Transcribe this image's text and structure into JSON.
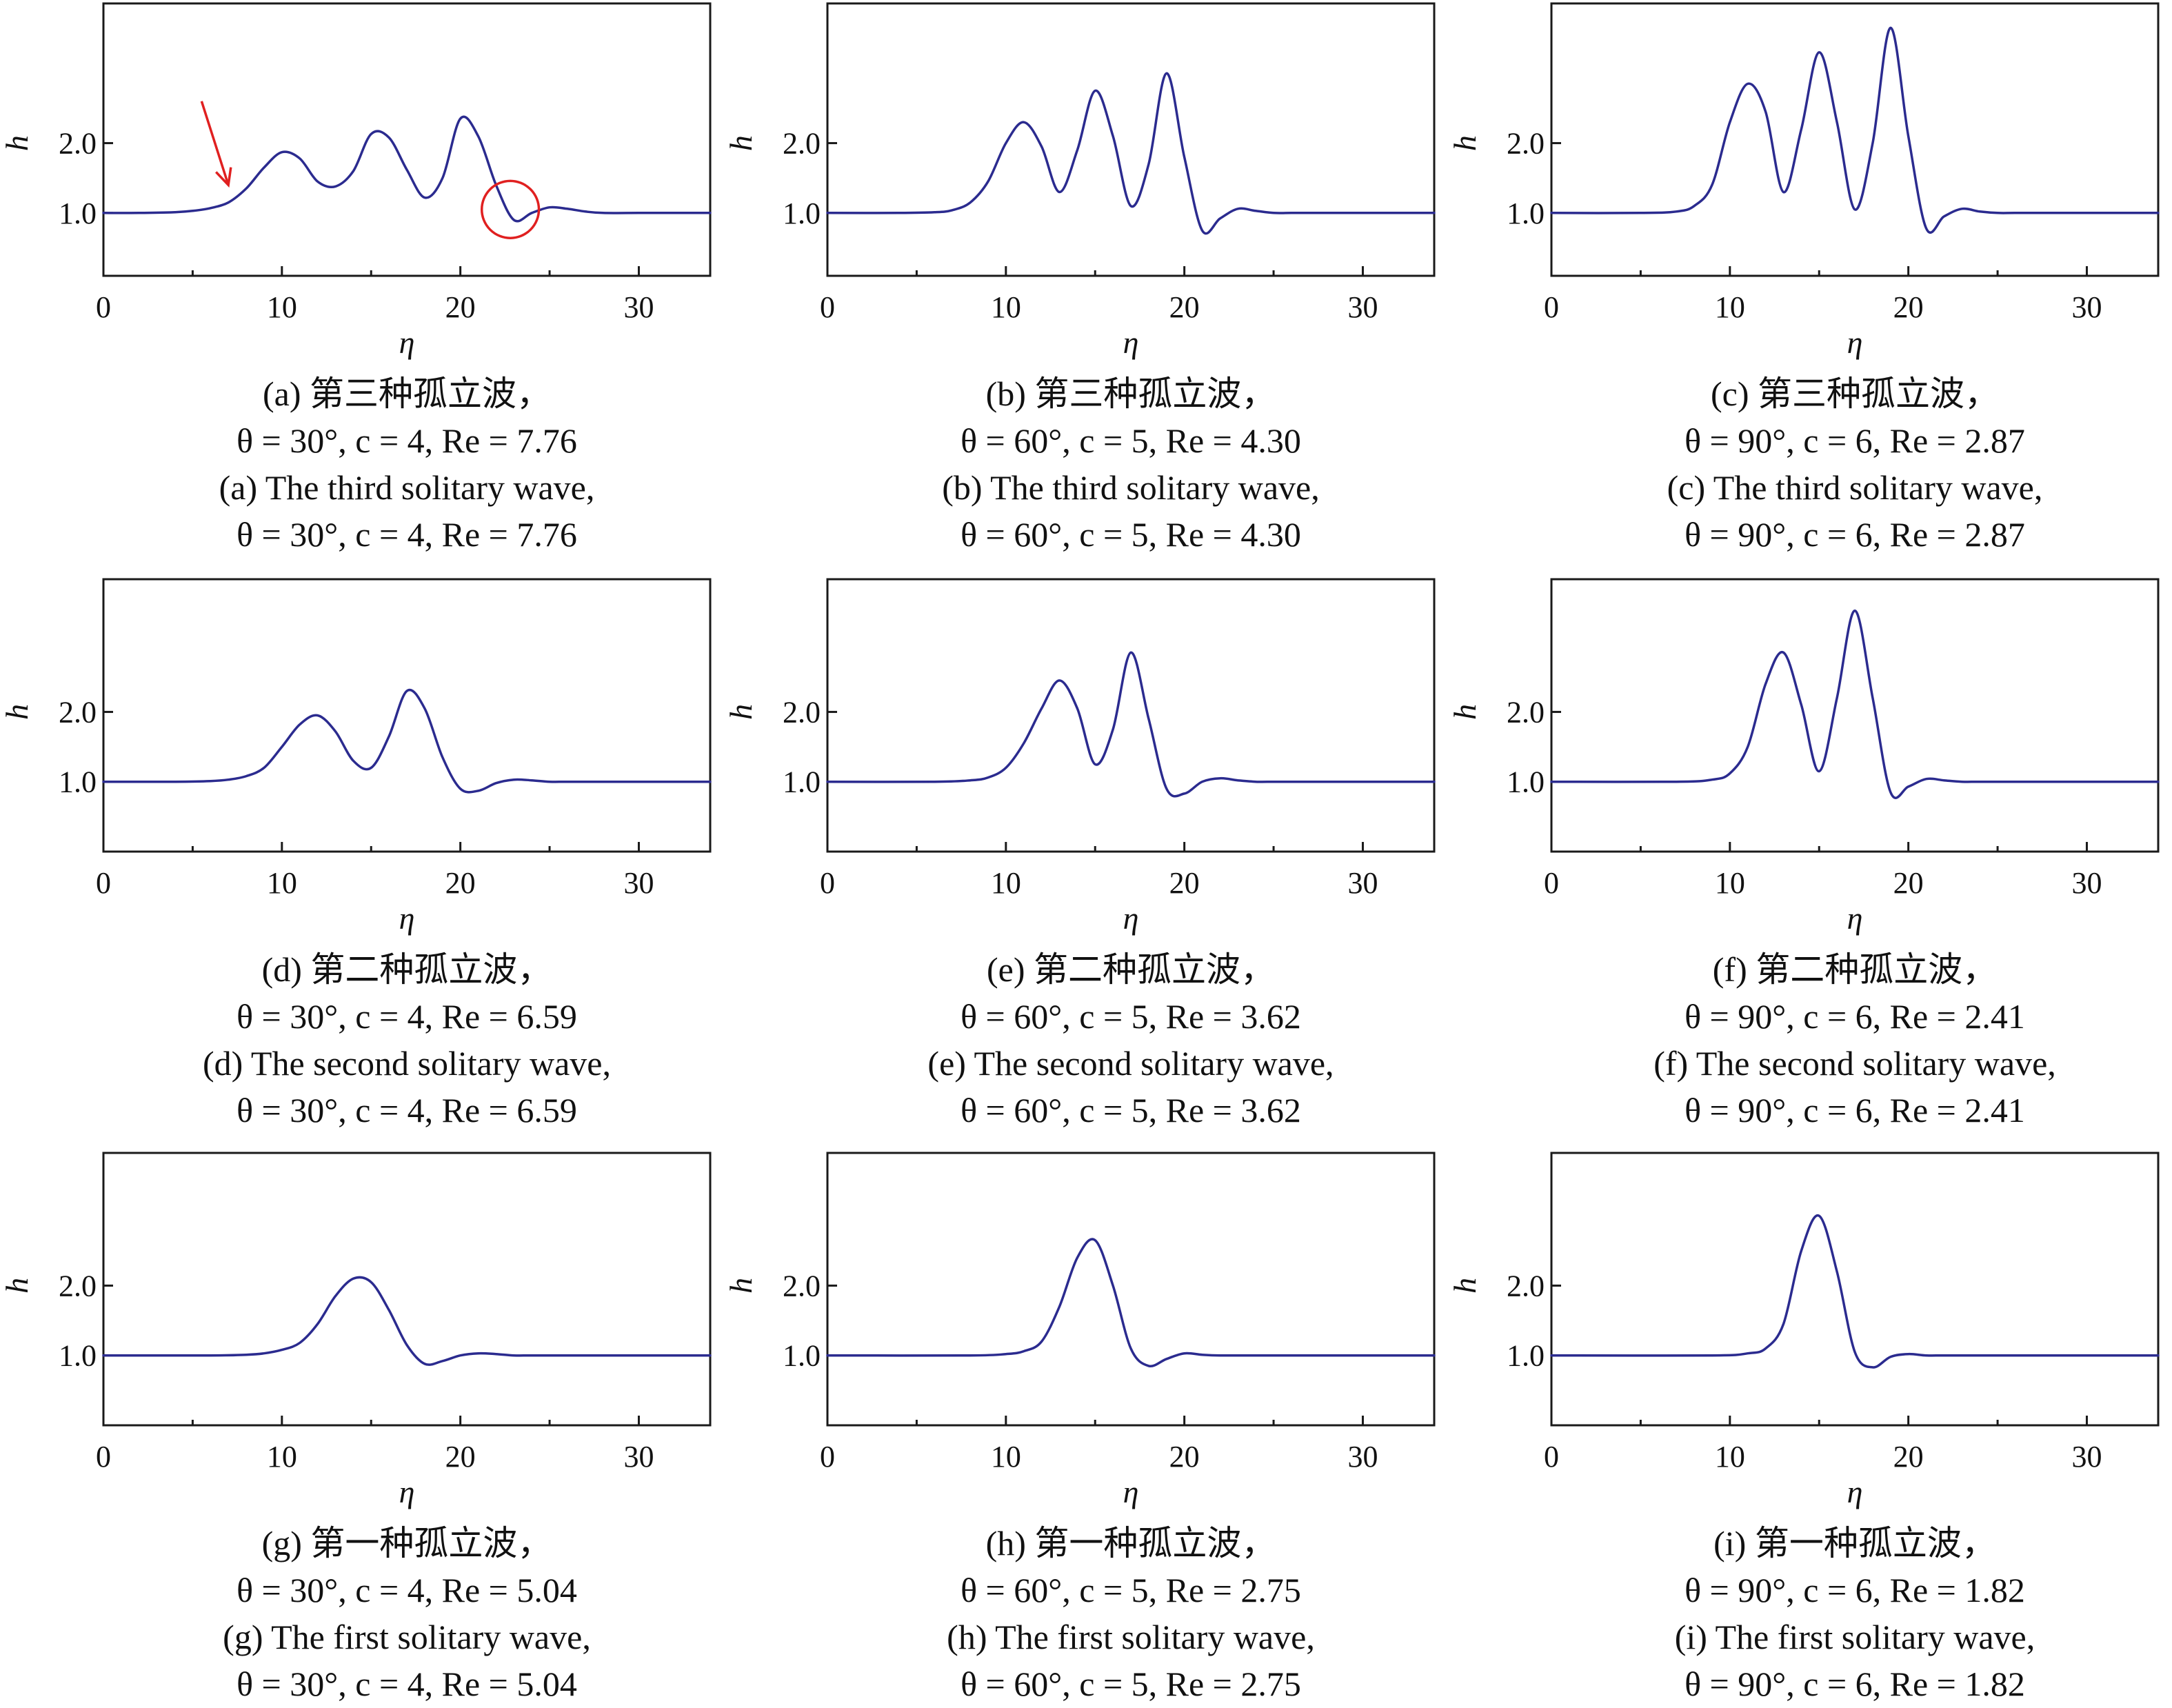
{
  "colors": {
    "series": "#2b2b8f",
    "annotation": "#e02020",
    "axis": "#1a1a1a",
    "text": "#111111"
  },
  "chart_data": [
    {
      "id": "a",
      "type": "line",
      "xlabel": "η",
      "ylabel": "h",
      "xlim": [
        0,
        34
      ],
      "ylim": [
        0.1,
        4.0
      ],
      "xticks": [
        "0",
        "10",
        "20",
        "30"
      ],
      "yticks": [
        "1.0",
        "2.0"
      ],
      "caption_zh": "(a) 第三种孤立波，",
      "caption_params_1": "θ = 30°, c = 4, Re = 7.76",
      "caption_en": "(a) The third solitary wave,",
      "caption_params_2": "θ = 30°, c = 4, Re = 7.76",
      "annotations": [
        {
          "type": "arrow",
          "from": [
            5.5,
            2.6
          ],
          "to": [
            7.0,
            1.4
          ]
        },
        {
          "type": "circle",
          "center": [
            22.8,
            1.05
          ],
          "radius": 1.6
        }
      ],
      "series": [
        {
          "x": [
            0,
            2,
            4,
            5,
            6,
            7,
            8,
            9,
            10,
            11,
            12,
            13,
            14,
            15,
            16,
            17,
            18,
            19,
            20,
            21,
            22,
            23,
            24,
            25,
            26,
            27,
            28,
            30,
            32,
            34
          ],
          "y": [
            1.0,
            1.0,
            1.01,
            1.03,
            1.07,
            1.15,
            1.35,
            1.65,
            1.87,
            1.78,
            1.45,
            1.38,
            1.6,
            2.13,
            2.08,
            1.62,
            1.22,
            1.5,
            2.35,
            2.1,
            1.4,
            0.9,
            1.0,
            1.08,
            1.06,
            1.02,
            1.0,
            1.0,
            1.0,
            1.0
          ]
        }
      ]
    },
    {
      "id": "b",
      "type": "line",
      "xlabel": "η",
      "ylabel": "h",
      "xlim": [
        0,
        34
      ],
      "ylim": [
        0.1,
        4.0
      ],
      "xticks": [
        "0",
        "10",
        "20",
        "30"
      ],
      "yticks": [
        "1.0",
        "2.0"
      ],
      "caption_zh": "(b) 第三种孤立波，",
      "caption_params_1": "θ = 60°, c = 5, Re = 4.30",
      "caption_en": "(b) The third solitary wave,",
      "caption_params_2": "θ = 60°, c = 5, Re = 4.30",
      "annotations": [],
      "series": [
        {
          "x": [
            0,
            4,
            6,
            7,
            8,
            9,
            10,
            11,
            12,
            13,
            14,
            15,
            16,
            17,
            18,
            19,
            20,
            21,
            22,
            23,
            24,
            25,
            26,
            28,
            30,
            34
          ],
          "y": [
            1.0,
            1.0,
            1.01,
            1.04,
            1.15,
            1.45,
            2.0,
            2.3,
            1.95,
            1.3,
            1.9,
            2.75,
            2.1,
            1.1,
            1.7,
            3.0,
            1.8,
            0.75,
            0.92,
            1.06,
            1.03,
            1.0,
            1.0,
            1.0,
            1.0,
            1.0
          ]
        }
      ]
    },
    {
      "id": "c",
      "type": "line",
      "xlabel": "η",
      "ylabel": "h",
      "xlim": [
        0,
        34
      ],
      "ylim": [
        0.1,
        4.0
      ],
      "xticks": [
        "0",
        "10",
        "20",
        "30"
      ],
      "yticks": [
        "1.0",
        "2.0"
      ],
      "caption_zh": "(c) 第三种孤立波，",
      "caption_params_1": "θ = 90°, c = 6, Re = 2.87",
      "caption_en": "(c) The third solitary wave,",
      "caption_params_2": "θ = 90°, c = 6, Re = 2.87",
      "annotations": [],
      "series": [
        {
          "x": [
            0,
            5,
            7,
            8,
            9,
            10,
            11,
            12,
            13,
            14,
            15,
            16,
            17,
            18,
            19,
            20,
            21,
            22,
            23,
            24,
            25,
            26,
            28,
            30,
            34
          ],
          "y": [
            1.0,
            1.0,
            1.02,
            1.1,
            1.4,
            2.3,
            2.85,
            2.45,
            1.3,
            2.2,
            3.3,
            2.3,
            1.05,
            2.0,
            3.65,
            2.1,
            0.78,
            0.95,
            1.06,
            1.02,
            1.0,
            1.0,
            1.0,
            1.0,
            1.0
          ]
        }
      ]
    },
    {
      "id": "d",
      "type": "line",
      "xlabel": "η",
      "ylabel": "h",
      "xlim": [
        0,
        34
      ],
      "ylim": [
        0.0,
        3.9
      ],
      "xticks": [
        "0",
        "10",
        "20",
        "30"
      ],
      "yticks": [
        "1.0",
        "2.0"
      ],
      "caption_zh": "(d) 第二种孤立波，",
      "caption_params_1": "θ = 30°, c = 4, Re = 6.59",
      "caption_en": "(d) The second solitary wave,",
      "caption_params_2": "θ = 30°, c = 4, Re = 6.59",
      "annotations": [],
      "series": [
        {
          "x": [
            0,
            4,
            6,
            7,
            8,
            9,
            10,
            11,
            12,
            13,
            14,
            15,
            16,
            17,
            18,
            19,
            20,
            21,
            22,
            23,
            24,
            25,
            26,
            28,
            30,
            34
          ],
          "y": [
            1.0,
            1.0,
            1.01,
            1.03,
            1.08,
            1.2,
            1.5,
            1.82,
            1.95,
            1.72,
            1.3,
            1.2,
            1.65,
            2.3,
            2.05,
            1.35,
            0.9,
            0.87,
            0.98,
            1.03,
            1.02,
            1.0,
            1.0,
            1.0,
            1.0,
            1.0
          ]
        }
      ]
    },
    {
      "id": "e",
      "type": "line",
      "xlabel": "η",
      "ylabel": "h",
      "xlim": [
        0,
        34
      ],
      "ylim": [
        0.0,
        3.9
      ],
      "xticks": [
        "0",
        "10",
        "20",
        "30"
      ],
      "yticks": [
        "1.0",
        "2.0"
      ],
      "caption_zh": "(e) 第二种孤立波，",
      "caption_params_1": "θ = 60°, c = 5, Re = 3.62",
      "caption_en": "(e) The second solitary wave,",
      "caption_params_2": "θ = 60°, c = 5, Re = 3.62",
      "annotations": [],
      "series": [
        {
          "x": [
            0,
            6,
            8,
            9,
            10,
            11,
            12,
            13,
            14,
            15,
            16,
            17,
            18,
            19,
            20,
            21,
            22,
            23,
            24,
            25,
            26,
            28,
            30,
            34
          ],
          "y": [
            1.0,
            1.0,
            1.02,
            1.06,
            1.2,
            1.55,
            2.05,
            2.45,
            2.05,
            1.25,
            1.75,
            2.85,
            1.9,
            0.9,
            0.83,
            1.0,
            1.05,
            1.02,
            1.0,
            1.0,
            1.0,
            1.0,
            1.0,
            1.0
          ]
        }
      ]
    },
    {
      "id": "f",
      "type": "line",
      "xlabel": "η",
      "ylabel": "h",
      "xlim": [
        0,
        34
      ],
      "ylim": [
        0.0,
        3.9
      ],
      "xticks": [
        "0",
        "10",
        "20",
        "30"
      ],
      "yticks": [
        "1.0",
        "2.0"
      ],
      "caption_zh": "(f) 第二种孤立波，",
      "caption_params_1": "θ = 90°, c = 6, Re = 2.41",
      "caption_en": "(f) The second solitary wave,",
      "caption_params_2": "θ = 90°, c = 6, Re = 2.41",
      "annotations": [],
      "series": [
        {
          "x": [
            0,
            7,
            9,
            10,
            11,
            12,
            13,
            14,
            15,
            16,
            17,
            18,
            19,
            20,
            21,
            22,
            23,
            24,
            26,
            28,
            30,
            34
          ],
          "y": [
            1.0,
            1.0,
            1.03,
            1.12,
            1.5,
            2.4,
            2.85,
            2.1,
            1.15,
            2.2,
            3.45,
            2.2,
            0.85,
            0.93,
            1.04,
            1.02,
            1.0,
            1.0,
            1.0,
            1.0,
            1.0,
            1.0
          ]
        }
      ]
    },
    {
      "id": "g",
      "type": "line",
      "xlabel": "η",
      "ylabel": "h",
      "xlim": [
        0,
        34
      ],
      "ylim": [
        0.0,
        3.9
      ],
      "xticks": [
        "0",
        "10",
        "20",
        "30"
      ],
      "yticks": [
        "1.0",
        "2.0"
      ],
      "caption_zh": "(g) 第一种孤立波，",
      "caption_params_1": "θ = 30°, c = 4, Re = 5.04",
      "caption_en": "(g) The first solitary wave,",
      "caption_params_2": "θ = 30°, c = 4, Re = 5.04",
      "annotations": [],
      "series": [
        {
          "x": [
            0,
            6,
            8,
            9,
            10,
            11,
            12,
            13,
            14,
            15,
            16,
            17,
            18,
            19,
            20,
            21,
            22,
            23,
            24,
            26,
            28,
            30,
            34
          ],
          "y": [
            1.0,
            1.0,
            1.01,
            1.03,
            1.08,
            1.18,
            1.45,
            1.85,
            2.1,
            2.05,
            1.65,
            1.15,
            0.88,
            0.92,
            1.0,
            1.03,
            1.02,
            1.0,
            1.0,
            1.0,
            1.0,
            1.0,
            1.0
          ]
        }
      ]
    },
    {
      "id": "h",
      "type": "line",
      "xlabel": "η",
      "ylabel": "h",
      "xlim": [
        0,
        34
      ],
      "ylim": [
        0.0,
        3.9
      ],
      "xticks": [
        "0",
        "10",
        "20",
        "30"
      ],
      "yticks": [
        "1.0",
        "2.0"
      ],
      "caption_zh": "(h) 第一种孤立波，",
      "caption_params_1": "θ = 60°, c = 5, Re = 2.75",
      "caption_en": "(h) The first solitary wave,",
      "caption_params_2": "θ = 60°, c = 5, Re = 2.75",
      "annotations": [],
      "series": [
        {
          "x": [
            0,
            8,
            10,
            11,
            12,
            13,
            14,
            15,
            16,
            17,
            18,
            19,
            20,
            21,
            22,
            24,
            26,
            28,
            30,
            34
          ],
          "y": [
            1.0,
            1.0,
            1.02,
            1.06,
            1.2,
            1.7,
            2.4,
            2.65,
            2.0,
            1.1,
            0.85,
            0.95,
            1.03,
            1.01,
            1.0,
            1.0,
            1.0,
            1.0,
            1.0,
            1.0
          ]
        }
      ]
    },
    {
      "id": "i",
      "type": "line",
      "xlabel": "η",
      "ylabel": "h",
      "xlim": [
        0,
        34
      ],
      "ylim": [
        0.0,
        3.9
      ],
      "xticks": [
        "0",
        "10",
        "20",
        "30"
      ],
      "yticks": [
        "1.0",
        "2.0"
      ],
      "caption_zh": "(i) 第一种孤立波，",
      "caption_params_1": "θ = 90°, c = 6, Re = 1.82",
      "caption_en": "(i) The first solitary wave,",
      "caption_params_2": "θ = 90°, c = 6, Re = 1.82",
      "annotations": [],
      "series": [
        {
          "x": [
            0,
            9,
            11,
            12,
            13,
            14,
            15,
            16,
            17,
            18,
            19,
            20,
            21,
            22,
            24,
            26,
            28,
            30,
            34
          ],
          "y": [
            1.0,
            1.0,
            1.03,
            1.1,
            1.45,
            2.5,
            3.0,
            2.2,
            1.05,
            0.83,
            0.98,
            1.02,
            1.0,
            1.0,
            1.0,
            1.0,
            1.0,
            1.0,
            1.0
          ]
        }
      ]
    }
  ]
}
